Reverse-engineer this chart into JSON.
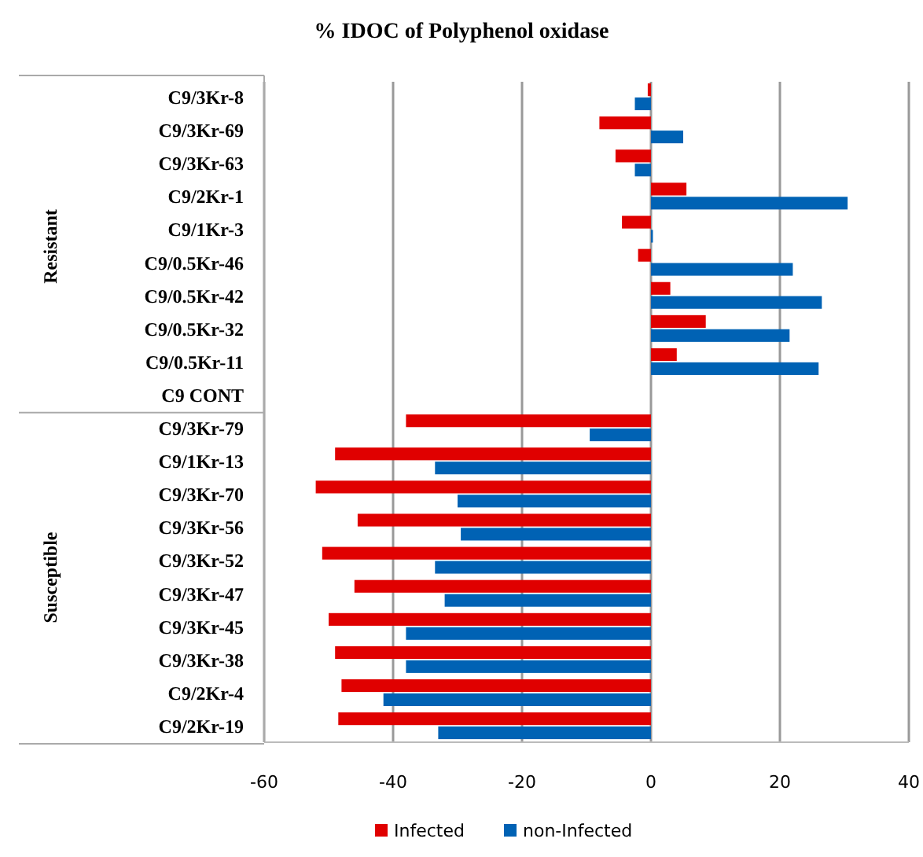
{
  "chart_data": {
    "type": "bar",
    "orientation": "horizontal",
    "title": "% IDOC of Polyphenol oxidase",
    "categories": [
      "C9/3Kr-8",
      "C9/3Kr-69",
      "C9/3Kr-63",
      "C9/2Kr-1",
      "C9/1Kr-3",
      "C9/0.5Kr-46",
      "C9/0.5Kr-42",
      "C9/0.5Kr-32",
      "C9/0.5Kr-11",
      "C9 CONT",
      "C9/3Kr-79",
      "C9/1Kr-13",
      "C9/3Kr-70",
      "C9/3Kr-56",
      "C9/3Kr-52",
      "C9/3Kr-47",
      "C9/3Kr-45",
      "C9/3Kr-38",
      "C9/2Kr-4",
      "C9/2Kr-19"
    ],
    "series": [
      {
        "name": "Infected",
        "color": "#e00000",
        "values": [
          -0.5,
          -8,
          -5.5,
          5.5,
          -4.5,
          -2,
          3,
          8.5,
          4,
          0,
          -38,
          -49,
          -52,
          -45.5,
          -51,
          -46,
          -50,
          -49,
          -48,
          -48.5
        ]
      },
      {
        "name": "non-Infected",
        "color": "#0062b4",
        "values": [
          -2.5,
          5,
          -2.5,
          30.5,
          0.3,
          22,
          26.5,
          21.5,
          26,
          0,
          -9.5,
          -33.5,
          -30,
          -29.5,
          -33.5,
          -32,
          -38,
          -38,
          -41.5,
          -33
        ]
      }
    ],
    "xlim": [
      -60,
      40
    ],
    "xticks": [
      -60,
      -40,
      -20,
      0,
      20,
      40
    ],
    "grid": "x",
    "legend": "bottom",
    "annotations": [
      "Resistant",
      "Susceptible"
    ]
  }
}
